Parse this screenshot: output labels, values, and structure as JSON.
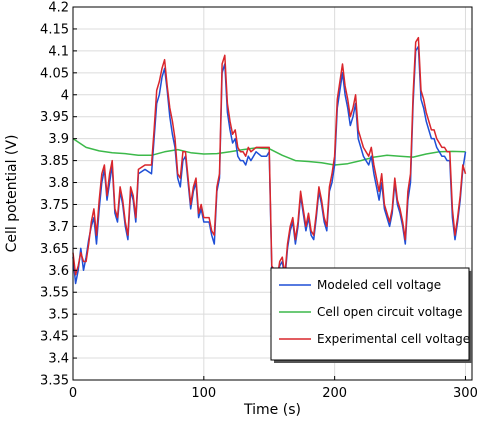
{
  "chart_data": {
    "type": "line",
    "xlabel": "Time (s)",
    "ylabel": "Cell potential (V)",
    "xlim": [
      0,
      305
    ],
    "ylim": [
      3.35,
      4.2
    ],
    "xticks": [
      0,
      100,
      200,
      300
    ],
    "yticks": [
      3.35,
      3.4,
      3.45,
      3.5,
      3.55,
      3.6,
      3.65,
      3.7,
      3.75,
      3.8,
      3.85,
      3.9,
      3.95,
      4,
      4.05,
      4.1,
      4.15,
      4.2
    ],
    "grid": true,
    "legend_position": "bottom-right",
    "series": [
      {
        "name": "Modeled cell voltage",
        "color": "#1f4fd6",
        "x": [
          0,
          2,
          4,
          6,
          8,
          10,
          12,
          14,
          16,
          18,
          20,
          22,
          24,
          26,
          28,
          30,
          32,
          34,
          36,
          38,
          40,
          42,
          44,
          46,
          48,
          50,
          55,
          60,
          62,
          64,
          66,
          68,
          70,
          72,
          74,
          76,
          78,
          80,
          82,
          84,
          86,
          88,
          90,
          92,
          94,
          96,
          98,
          100,
          104,
          106,
          108,
          110,
          112,
          114,
          116,
          118,
          120,
          122,
          124,
          126,
          128,
          130,
          132,
          134,
          136,
          140,
          144,
          146,
          148,
          150,
          152,
          154,
          156,
          158,
          160,
          162,
          164,
          166,
          168,
          170,
          172,
          174,
          176,
          178,
          180,
          182,
          184,
          186,
          188,
          190,
          192,
          194,
          196,
          198,
          200,
          202,
          204,
          206,
          208,
          210,
          212,
          214,
          216,
          218,
          220,
          222,
          224,
          226,
          228,
          230,
          232,
          234,
          236,
          238,
          240,
          242,
          244,
          246,
          248,
          250,
          252,
          254,
          256,
          258,
          260,
          262,
          264,
          266,
          268,
          270,
          272,
          274,
          276,
          278,
          280,
          282,
          284,
          286,
          288,
          290,
          292,
          294,
          296,
          298,
          300
        ],
        "y": [
          3.63,
          3.57,
          3.6,
          3.65,
          3.6,
          3.63,
          3.67,
          3.7,
          3.72,
          3.66,
          3.74,
          3.8,
          3.83,
          3.76,
          3.8,
          3.84,
          3.73,
          3.71,
          3.78,
          3.75,
          3.7,
          3.67,
          3.78,
          3.76,
          3.71,
          3.82,
          3.83,
          3.82,
          3.9,
          3.98,
          4.0,
          4.04,
          4.06,
          4.01,
          3.95,
          3.91,
          3.88,
          3.81,
          3.79,
          3.85,
          3.86,
          3.8,
          3.74,
          3.78,
          3.8,
          3.72,
          3.74,
          3.71,
          3.71,
          3.68,
          3.66,
          3.78,
          3.81,
          4.05,
          4.07,
          3.96,
          3.92,
          3.89,
          3.9,
          3.86,
          3.85,
          3.85,
          3.84,
          3.86,
          3.85,
          3.87,
          3.86,
          3.86,
          3.86,
          3.87,
          3.6,
          3.59,
          3.57,
          3.61,
          3.62,
          3.58,
          3.65,
          3.69,
          3.71,
          3.66,
          3.7,
          3.77,
          3.73,
          3.69,
          3.72,
          3.68,
          3.67,
          3.72,
          3.78,
          3.75,
          3.71,
          3.69,
          3.78,
          3.8,
          3.84,
          3.97,
          4.01,
          4.05,
          4.0,
          3.97,
          3.93,
          3.95,
          3.98,
          3.9,
          3.88,
          3.86,
          3.85,
          3.84,
          3.86,
          3.82,
          3.79,
          3.76,
          3.8,
          3.74,
          3.72,
          3.7,
          3.73,
          3.8,
          3.75,
          3.73,
          3.7,
          3.66,
          3.76,
          3.8,
          3.98,
          4.1,
          4.11,
          3.99,
          3.97,
          3.94,
          3.92,
          3.9,
          3.9,
          3.88,
          3.87,
          3.86,
          3.86,
          3.85,
          3.85,
          3.72,
          3.67,
          3.71,
          3.76,
          3.83,
          3.87
        ]
      },
      {
        "name": "Cell open circuit voltage",
        "color": "#3cb94a",
        "x": [
          0,
          10,
          20,
          30,
          40,
          50,
          60,
          70,
          80,
          90,
          100,
          110,
          120,
          130,
          140,
          150,
          160,
          170,
          180,
          190,
          200,
          210,
          220,
          230,
          240,
          250,
          260,
          270,
          280,
          290,
          300
        ],
        "y": [
          3.9,
          3.88,
          3.872,
          3.868,
          3.866,
          3.862,
          3.862,
          3.87,
          3.875,
          3.868,
          3.865,
          3.866,
          3.87,
          3.875,
          3.879,
          3.877,
          3.862,
          3.85,
          3.848,
          3.845,
          3.84,
          3.843,
          3.85,
          3.858,
          3.862,
          3.86,
          3.858,
          3.865,
          3.87,
          3.871,
          3.87
        ]
      },
      {
        "name": "Experimental cell voltage",
        "color": "#d9262c",
        "x": [
          0,
          2,
          4,
          6,
          8,
          10,
          12,
          14,
          16,
          18,
          20,
          22,
          24,
          26,
          28,
          30,
          32,
          34,
          36,
          38,
          40,
          42,
          44,
          46,
          48,
          50,
          55,
          60,
          62,
          64,
          66,
          68,
          70,
          72,
          74,
          76,
          78,
          80,
          82,
          84,
          86,
          88,
          90,
          92,
          94,
          96,
          98,
          100,
          104,
          106,
          108,
          110,
          112,
          114,
          116,
          118,
          120,
          122,
          124,
          126,
          128,
          130,
          132,
          134,
          136,
          140,
          144,
          146,
          148,
          150,
          152,
          154,
          156,
          158,
          160,
          162,
          164,
          166,
          168,
          170,
          172,
          174,
          176,
          178,
          180,
          182,
          184,
          186,
          188,
          190,
          192,
          194,
          196,
          198,
          200,
          202,
          204,
          206,
          208,
          210,
          212,
          214,
          216,
          218,
          220,
          222,
          224,
          226,
          228,
          230,
          232,
          234,
          236,
          238,
          240,
          242,
          244,
          246,
          248,
          250,
          252,
          254,
          256,
          258,
          260,
          262,
          264,
          266,
          268,
          270,
          272,
          274,
          276,
          278,
          280,
          282,
          284,
          286,
          288,
          290,
          292,
          294,
          296,
          298,
          300
        ],
        "y": [
          3.64,
          3.59,
          3.61,
          3.64,
          3.62,
          3.62,
          3.66,
          3.71,
          3.74,
          3.68,
          3.76,
          3.82,
          3.84,
          3.77,
          3.82,
          3.85,
          3.74,
          3.72,
          3.79,
          3.76,
          3.71,
          3.68,
          3.79,
          3.77,
          3.72,
          3.83,
          3.84,
          3.84,
          3.92,
          4.01,
          4.03,
          4.06,
          4.08,
          4.02,
          3.97,
          3.94,
          3.9,
          3.82,
          3.81,
          3.87,
          3.87,
          3.81,
          3.75,
          3.79,
          3.81,
          3.73,
          3.75,
          3.72,
          3.72,
          3.69,
          3.68,
          3.79,
          3.82,
          4.07,
          4.09,
          3.98,
          3.94,
          3.91,
          3.92,
          3.88,
          3.87,
          3.87,
          3.86,
          3.88,
          3.87,
          3.88,
          3.88,
          3.88,
          3.88,
          3.88,
          3.61,
          3.6,
          3.58,
          3.62,
          3.63,
          3.59,
          3.66,
          3.7,
          3.72,
          3.67,
          3.71,
          3.78,
          3.74,
          3.7,
          3.73,
          3.69,
          3.68,
          3.73,
          3.79,
          3.76,
          3.72,
          3.7,
          3.79,
          3.82,
          3.86,
          3.99,
          4.03,
          4.07,
          4.02,
          3.99,
          3.95,
          3.97,
          4.0,
          3.92,
          3.9,
          3.88,
          3.87,
          3.86,
          3.88,
          3.84,
          3.81,
          3.78,
          3.82,
          3.75,
          3.73,
          3.71,
          3.74,
          3.81,
          3.76,
          3.74,
          3.71,
          3.67,
          3.78,
          3.82,
          4.0,
          4.12,
          4.13,
          4.01,
          3.99,
          3.96,
          3.94,
          3.92,
          3.92,
          3.9,
          3.89,
          3.88,
          3.88,
          3.87,
          3.87,
          3.74,
          3.68,
          3.72,
          3.77,
          3.84,
          3.82
        ]
      }
    ]
  }
}
